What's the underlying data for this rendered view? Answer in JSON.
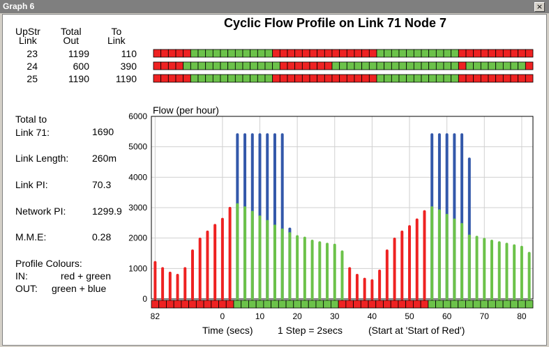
{
  "window": {
    "title": "Graph 6",
    "close_glyph": "×"
  },
  "summary": {
    "headers": {
      "upstr": "UpStr\nLink",
      "total_out": "Total\nOut",
      "to_link": "To\nLink"
    },
    "rows": [
      {
        "upstr": "23",
        "total_out": "1199",
        "to_link": "110"
      },
      {
        "upstr": "24",
        "total_out": "600",
        "to_link": "390"
      },
      {
        "upstr": "25",
        "total_out": "1190",
        "to_link": "1190"
      }
    ]
  },
  "stats": {
    "total_label": "Total to\nLink 71:",
    "total_value": "1690",
    "length_label": "Link Length:",
    "length_value": "260m",
    "link_pi_label": "Link PI:",
    "link_pi_value": "70.3",
    "network_pi_label": "Network PI:",
    "network_pi_value": "1299.9",
    "mme_label": "M.M.E:",
    "mme_value": "0.28",
    "colours_label": "Profile Colours:",
    "in_label": "IN:",
    "in_value": "red + green",
    "out_label": "OUT:",
    "out_value": "green + blue"
  },
  "colors": {
    "red": "#ee2222",
    "green": "#6cc24a",
    "blue": "#3358aa",
    "grid": "#d0d0d0"
  },
  "chart_data": {
    "type": "bar",
    "title": "Cyclic Flow Profile on Link 71 Node 7",
    "ylabel": "Flow (per hour)",
    "xlabel": "Time (secs)",
    "step_note": "1 Step = 2secs",
    "start_note": "(Start at 'Start of Red')",
    "ylim": [
      0,
      6000
    ],
    "yticks": [
      0,
      1000,
      2000,
      3000,
      4000,
      5000,
      6000
    ],
    "xtick_labels": [
      "82",
      "0",
      "10",
      "20",
      "30",
      "40",
      "50",
      "60",
      "70",
      "80"
    ],
    "xtick_steps": [
      0,
      9,
      14,
      19,
      24,
      29,
      34,
      39,
      44,
      49
    ],
    "steps": 51,
    "grid": true,
    "signal_bars": [
      {
        "link": "23",
        "segments": [
          {
            "state": "red",
            "from": 0,
            "to": 5
          },
          {
            "state": "green",
            "from": 5,
            "to": 16
          },
          {
            "state": "red",
            "from": 16,
            "to": 30
          },
          {
            "state": "green",
            "from": 30,
            "to": 41
          },
          {
            "state": "red",
            "from": 41,
            "to": 51
          }
        ]
      },
      {
        "link": "24",
        "segments": [
          {
            "state": "red",
            "from": 0,
            "to": 4
          },
          {
            "state": "green",
            "from": 4,
            "to": 17
          },
          {
            "state": "red",
            "from": 17,
            "to": 24
          },
          {
            "state": "green",
            "from": 24,
            "to": 41
          },
          {
            "state": "red",
            "from": 41,
            "to": 42
          },
          {
            "state": "green",
            "from": 42,
            "to": 50
          },
          {
            "state": "red",
            "from": 50,
            "to": 51
          }
        ]
      },
      {
        "link": "25",
        "segments": [
          {
            "state": "red",
            "from": 0,
            "to": 5
          },
          {
            "state": "green",
            "from": 5,
            "to": 16
          },
          {
            "state": "red",
            "from": 16,
            "to": 30
          },
          {
            "state": "green",
            "from": 30,
            "to": 41
          },
          {
            "state": "red",
            "from": 41,
            "to": 51
          }
        ]
      }
    ],
    "axis_signal": [
      {
        "state": "red",
        "from": 0,
        "to": 11
      },
      {
        "state": "green",
        "from": 11,
        "to": 25
      },
      {
        "state": "red",
        "from": 25,
        "to": 37
      },
      {
        "state": "green",
        "from": 37,
        "to": 51
      }
    ],
    "series": [
      {
        "name": "IN",
        "colors": "red/green",
        "values": [
          1200,
          1000,
          850,
          780,
          1000,
          1580,
          1970,
          2200,
          2420,
          2620,
          2980,
          3100,
          3000,
          2850,
          2700,
          2550,
          2400,
          2270,
          2150,
          2050,
          2000,
          1900,
          1850,
          1800,
          1770,
          1550,
          1000,
          780,
          650,
          600,
          920,
          1580,
          1970,
          2200,
          2380,
          2600,
          2870,
          3000,
          2900,
          2750,
          2600,
          2450,
          2070,
          2030,
          1960,
          1900,
          1850,
          1800,
          1750,
          1700,
          1500
        ],
        "colors_by_step": [
          "red",
          "red",
          "red",
          "red",
          "red",
          "red",
          "red",
          "red",
          "red",
          "red",
          "red",
          "green",
          "green",
          "green",
          "green",
          "green",
          "green",
          "green",
          "green",
          "green",
          "green",
          "green",
          "green",
          "green",
          "green",
          "green",
          "red",
          "red",
          "red",
          "red",
          "red",
          "red",
          "red",
          "red",
          "red",
          "red",
          "red",
          "green",
          "green",
          "green",
          "green",
          "green",
          "green",
          "green",
          "green",
          "green",
          "green",
          "green",
          "green",
          "green",
          "green"
        ]
      },
      {
        "name": "OUT",
        "colors": "green/blue",
        "values": [
          null,
          null,
          null,
          null,
          null,
          null,
          null,
          null,
          null,
          null,
          null,
          5400,
          5400,
          5400,
          5400,
          5400,
          5400,
          5400,
          2300,
          null,
          null,
          null,
          null,
          null,
          null,
          null,
          null,
          null,
          null,
          null,
          null,
          null,
          null,
          null,
          null,
          null,
          null,
          5400,
          5400,
          5400,
          5400,
          5400,
          4600,
          null,
          null,
          null,
          null,
          null,
          null,
          null,
          null
        ]
      }
    ]
  }
}
